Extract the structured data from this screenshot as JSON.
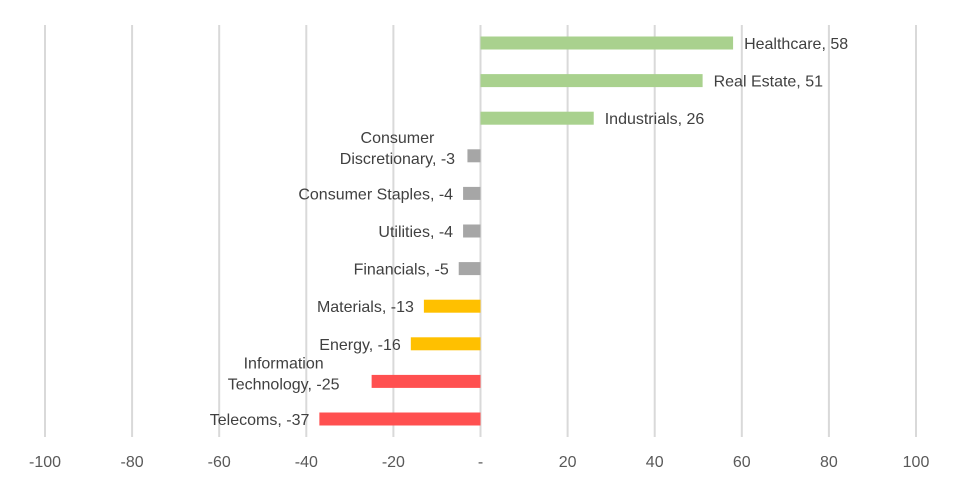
{
  "chart_data": {
    "type": "bar",
    "orientation": "horizontal",
    "title": "",
    "xlabel": "",
    "ylabel": "",
    "xlim": [
      -100,
      100
    ],
    "x_ticks": [
      -100,
      -80,
      -60,
      -40,
      -20,
      0,
      20,
      40,
      60,
      80,
      100
    ],
    "x_tick_labels": [
      "-100",
      "-80",
      "-60",
      "-40",
      "-20",
      "-",
      "20",
      "40",
      "60",
      "80",
      "100"
    ],
    "grid": true,
    "legend": "none",
    "categories": [
      "Healthcare",
      "Real Estate",
      "Industrials",
      "Consumer Discretionary",
      "Consumer Staples",
      "Utilities",
      "Financials",
      "Materials",
      "Energy",
      "Information Technology",
      "Telecoms"
    ],
    "values": [
      58,
      51,
      26,
      -3,
      -4,
      -4,
      -5,
      -13,
      -16,
      -25,
      -37
    ],
    "data_labels": [
      [
        "Healthcare,  58"
      ],
      [
        "Real Estate,  51"
      ],
      [
        "Industrials,  26"
      ],
      [
        "Consumer",
        "Discretionary, -3"
      ],
      [
        "Consumer Staples, -4"
      ],
      [
        "Utilities, -4"
      ],
      [
        "Financials, -5"
      ],
      [
        "Materials, -13"
      ],
      [
        "Energy, -16"
      ],
      [
        "Information",
        "Technology, -25"
      ],
      [
        "Telecoms, -37"
      ]
    ],
    "colors": [
      "#a9d18e",
      "#a9d18e",
      "#a9d18e",
      "#a6a6a6",
      "#a6a6a6",
      "#a6a6a6",
      "#a6a6a6",
      "#ffc000",
      "#ffc000",
      "#ff5050",
      "#ff5050"
    ]
  },
  "style": {
    "gridline_color": "#d9d9d9",
    "text_color": "#404040",
    "tick_color": "#595959"
  }
}
